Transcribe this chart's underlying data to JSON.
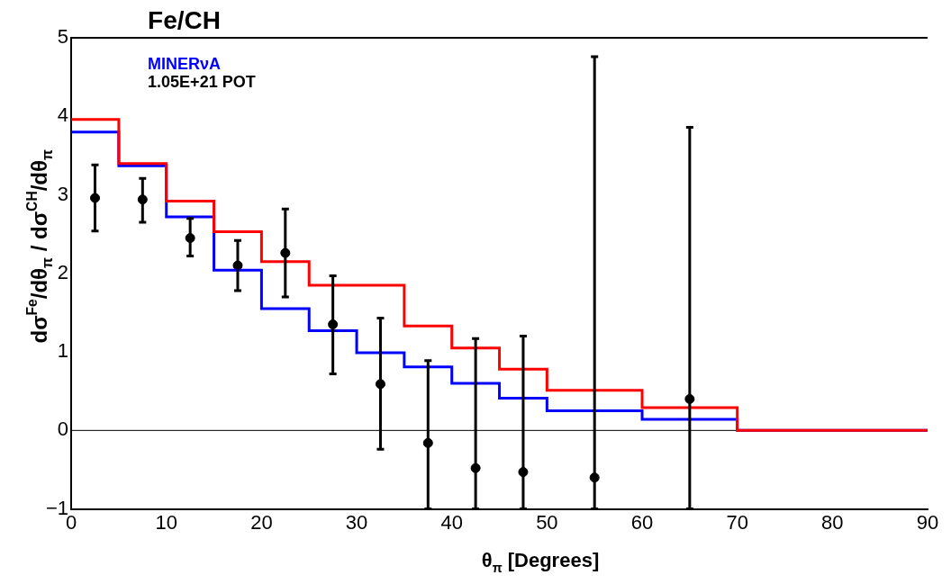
{
  "chart_data": {
    "type": "step",
    "title": "Fe/CH",
    "xlabel": "θ$_{π}$ [Degrees]",
    "ylabel": "dσ$^{Fe}$/dθ$_{π}$ / dσ$^{CH}$/dθ$_{π}$",
    "annotations": [
      "MINERνA",
      "1.05E+21 POT"
    ],
    "xlim": [
      0,
      90
    ],
    "xticks": [
      0,
      10,
      20,
      30,
      40,
      50,
      60,
      70,
      80,
      90
    ],
    "ylim": [
      -1,
      5
    ],
    "yticks": [
      -1,
      0,
      1,
      2,
      3,
      4,
      5
    ],
    "grid": false,
    "legend": false,
    "ref_lines": [
      {
        "axis": "y",
        "value": 0,
        "color": "#000000"
      }
    ],
    "series": [
      {
        "color": "#ff0000",
        "x": [
          0,
          5,
          10,
          15,
          20,
          25,
          30,
          35,
          40,
          45,
          50,
          60,
          70,
          90
        ],
        "values": [
          3.96,
          3.4,
          2.92,
          2.53,
          2.15,
          1.85,
          1.85,
          1.33,
          1.05,
          0.78,
          0.51,
          0.29,
          0,
          0
        ]
      },
      {
        "color": "#0000ff",
        "x": [
          0,
          5,
          10,
          15,
          20,
          25,
          30,
          35,
          40,
          45,
          50,
          60,
          70,
          90
        ],
        "values": [
          3.8,
          3.37,
          2.72,
          2.04,
          1.55,
          1.27,
          0.99,
          0.81,
          0.6,
          0.41,
          0.25,
          0.14,
          0,
          0
        ]
      },
      {
        "type": "scatter",
        "color": "#000000",
        "marker": "circle",
        "x": [
          2.5,
          7.5,
          12.5,
          17.5,
          22.5,
          27.5,
          32.5,
          37.5,
          42.5,
          47.5,
          55,
          65
        ],
        "values": [
          2.96,
          2.94,
          2.45,
          2.1,
          2.26,
          1.35,
          0.59,
          -0.16,
          -0.48,
          -0.53,
          -0.6,
          0.4
        ],
        "errors": [
          [
            2.54,
            3.38
          ],
          [
            2.65,
            3.21
          ],
          [
            2.22,
            2.7
          ],
          [
            1.78,
            2.42
          ],
          [
            1.7,
            2.82
          ],
          [
            0.72,
            1.97
          ],
          [
            -0.24,
            1.43
          ],
          [
            -1,
            0.89
          ],
          [
            -1,
            1.17
          ],
          [
            -1,
            1.2
          ],
          [
            -1,
            4.76
          ],
          [
            -1,
            3.86
          ]
        ]
      }
    ]
  }
}
